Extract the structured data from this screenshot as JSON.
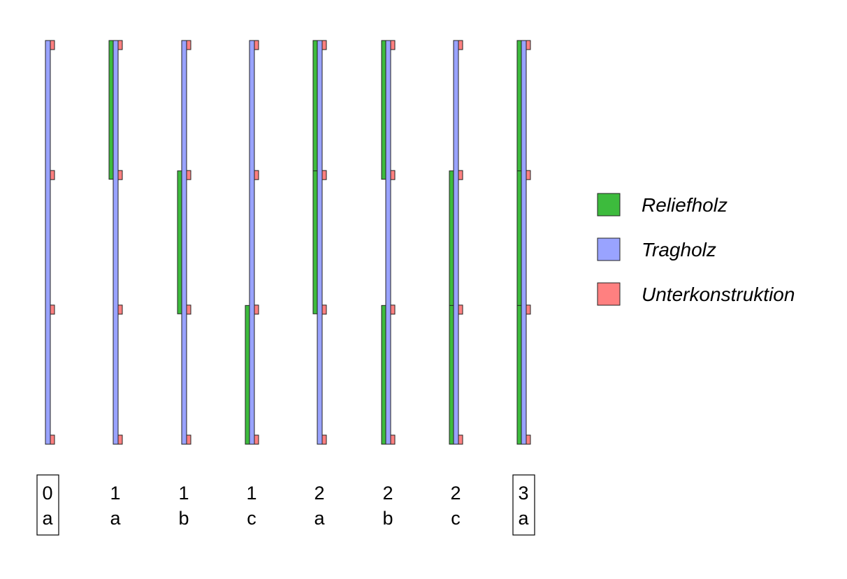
{
  "colors": {
    "reliefholz": "#3dbb3d",
    "tragholz": "#99a3ff",
    "unterkonstruktion": "#ff8080",
    "stroke": "#222222"
  },
  "legend": [
    {
      "key": "reliefholz",
      "label": "Reliefholz"
    },
    {
      "key": "tragholz",
      "label": "Tragholz"
    },
    {
      "key": "unterkonstruktion",
      "label": "Unterkonstruktion"
    }
  ],
  "panel_count": 3,
  "variants": [
    {
      "number": "0",
      "letter": "a",
      "boxed": true,
      "relief_panels": []
    },
    {
      "number": "1",
      "letter": "a",
      "boxed": false,
      "relief_panels": [
        1
      ]
    },
    {
      "number": "1",
      "letter": "b",
      "boxed": false,
      "relief_panels": [
        2
      ]
    },
    {
      "number": "1",
      "letter": "c",
      "boxed": false,
      "relief_panels": [
        3
      ]
    },
    {
      "number": "2",
      "letter": "a",
      "boxed": false,
      "relief_panels": [
        1,
        2
      ]
    },
    {
      "number": "2",
      "letter": "b",
      "boxed": false,
      "relief_panels": [
        1,
        3
      ]
    },
    {
      "number": "2",
      "letter": "c",
      "boxed": false,
      "relief_panels": [
        2,
        3
      ]
    },
    {
      "number": "3",
      "letter": "a",
      "boxed": true,
      "relief_panels": [
        1,
        2,
        3
      ]
    }
  ]
}
